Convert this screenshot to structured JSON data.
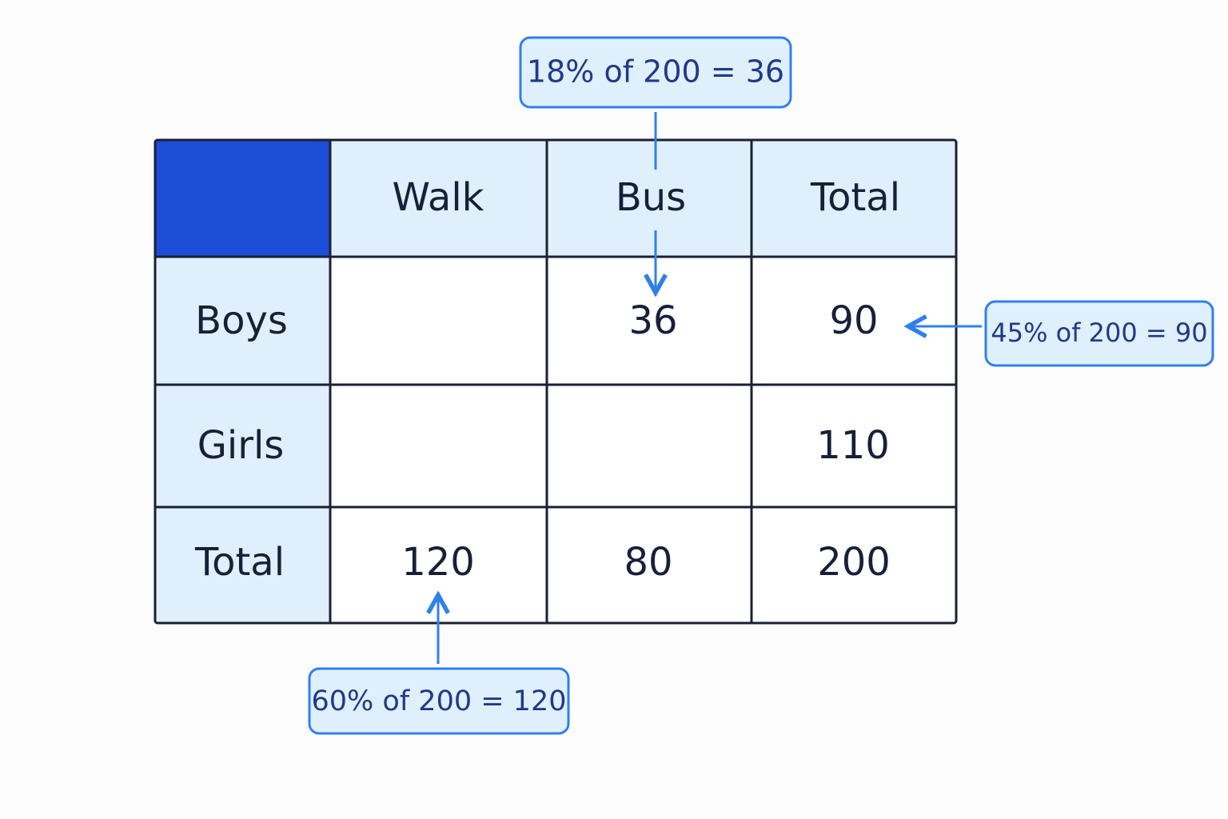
{
  "table": {
    "columns": [
      "Walk",
      "Bus",
      "Total"
    ],
    "rows": [
      {
        "label": "Boys",
        "cells": [
          null,
          36,
          90
        ]
      },
      {
        "label": "Girls",
        "cells": [
          null,
          null,
          110
        ]
      },
      {
        "label": "Total",
        "cells": [
          120,
          80,
          200
        ]
      }
    ]
  },
  "annotations": [
    {
      "text": "18% of 200 = 36"
    },
    {
      "text": "45% of 200 = 90"
    },
    {
      "text": "60% of 200 = 120"
    }
  ]
}
